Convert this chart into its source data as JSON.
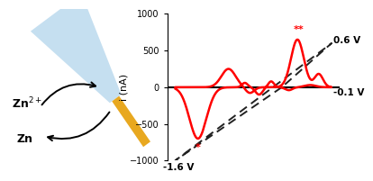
{
  "ylabel": "i (nA)",
  "ylim": [
    -1000,
    1000
  ],
  "yticks": [
    -1000,
    -500,
    0,
    500,
    1000
  ],
  "bg_color": "#ffffff",
  "line_color": "#ff0000",
  "dashed_color": "#222222",
  "pipette_color": "#c5dff0",
  "pipette_edge": "#a0c8e8",
  "gold_color": "#e8a820",
  "gold_edge": "#c88810",
  "zn2plus_text": "Zn$^{2+}$",
  "zn_text": "Zn",
  "star1_label": "*",
  "star2_label": "**",
  "label_06v": "0.6 V",
  "label_m01v": "-0.1 V",
  "label_m16v": "-1.6 V"
}
